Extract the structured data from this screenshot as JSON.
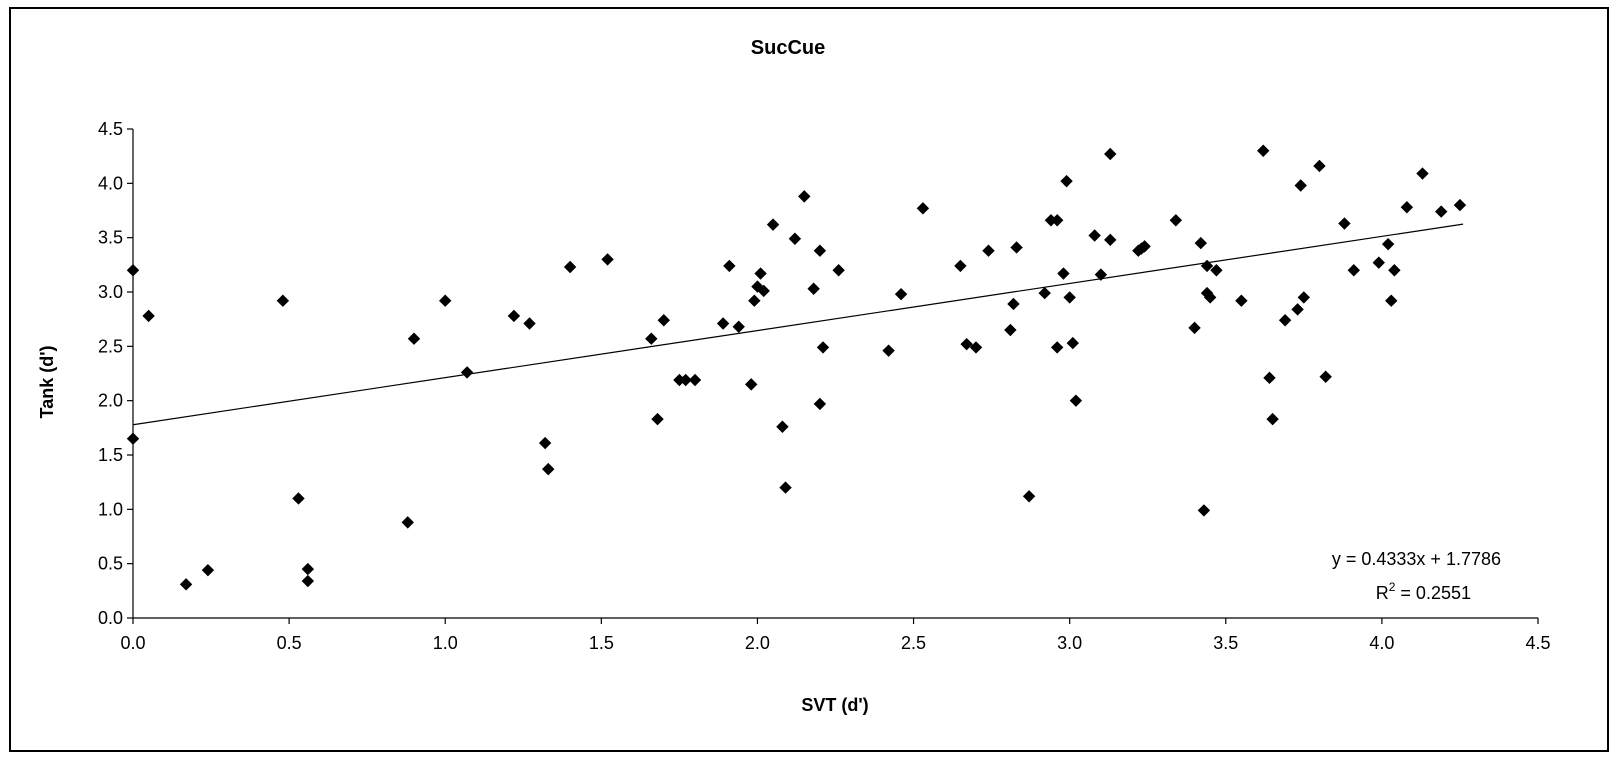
{
  "chart_data": {
    "type": "scatter",
    "title": "SucCue",
    "xlabel": "SVT (d')",
    "ylabel": "Tank (d')",
    "xlim": [
      0,
      4.5
    ],
    "ylim": [
      0,
      4.5
    ],
    "x_ticks": [
      "0.0",
      "0.5",
      "1.0",
      "1.5",
      "2.0",
      "2.5",
      "3.0",
      "3.5",
      "4.0",
      "4.5"
    ],
    "y_ticks": [
      "0.0",
      "0.5",
      "1.0",
      "1.5",
      "2.0",
      "2.5",
      "3.0",
      "3.5",
      "4.0",
      "4.5"
    ],
    "grid": false,
    "marker": "diamond",
    "marker_color": "#000000",
    "trendline": {
      "slope": 0.4333,
      "intercept": 1.7786,
      "x_range": [
        0.0,
        4.26
      ],
      "equation_label": "y = 0.4333x + 1.7786",
      "r2_prefix": "R",
      "r2_sup": "2",
      "r2_value": " = 0.2551"
    },
    "points": [
      [
        0.0,
        3.2
      ],
      [
        0.0,
        1.65
      ],
      [
        0.05,
        2.78
      ],
      [
        0.17,
        0.31
      ],
      [
        0.24,
        0.44
      ],
      [
        0.48,
        2.92
      ],
      [
        0.53,
        1.1
      ],
      [
        0.56,
        0.45
      ],
      [
        0.56,
        0.34
      ],
      [
        0.88,
        0.88
      ],
      [
        0.9,
        2.57
      ],
      [
        1.0,
        2.92
      ],
      [
        1.07,
        2.26
      ],
      [
        1.22,
        2.78
      ],
      [
        1.27,
        2.71
      ],
      [
        1.32,
        1.61
      ],
      [
        1.33,
        1.37
      ],
      [
        1.4,
        3.23
      ],
      [
        1.52,
        3.3
      ],
      [
        1.66,
        2.57
      ],
      [
        1.68,
        1.83
      ],
      [
        1.7,
        2.74
      ],
      [
        1.75,
        2.19
      ],
      [
        1.77,
        2.19
      ],
      [
        1.8,
        2.19
      ],
      [
        1.89,
        2.71
      ],
      [
        1.91,
        3.24
      ],
      [
        1.94,
        2.68
      ],
      [
        1.98,
        2.15
      ],
      [
        1.99,
        2.92
      ],
      [
        2.0,
        3.05
      ],
      [
        2.01,
        3.17
      ],
      [
        2.02,
        3.01
      ],
      [
        2.05,
        3.62
      ],
      [
        2.08,
        1.76
      ],
      [
        2.09,
        1.2
      ],
      [
        2.12,
        3.49
      ],
      [
        2.15,
        3.88
      ],
      [
        2.18,
        3.03
      ],
      [
        2.2,
        3.38
      ],
      [
        2.2,
        1.97
      ],
      [
        2.21,
        2.49
      ],
      [
        2.26,
        3.2
      ],
      [
        2.42,
        2.46
      ],
      [
        2.46,
        2.98
      ],
      [
        2.53,
        3.77
      ],
      [
        2.65,
        3.24
      ],
      [
        2.67,
        2.52
      ],
      [
        2.7,
        2.49
      ],
      [
        2.74,
        3.38
      ],
      [
        2.81,
        2.65
      ],
      [
        2.82,
        2.89
      ],
      [
        2.83,
        3.41
      ],
      [
        2.87,
        1.12
      ],
      [
        2.92,
        2.99
      ],
      [
        2.94,
        3.66
      ],
      [
        2.96,
        3.66
      ],
      [
        2.96,
        2.49
      ],
      [
        2.98,
        3.17
      ],
      [
        2.99,
        4.02
      ],
      [
        3.0,
        2.95
      ],
      [
        3.01,
        2.53
      ],
      [
        3.02,
        2.0
      ],
      [
        3.08,
        3.52
      ],
      [
        3.1,
        3.16
      ],
      [
        3.13,
        4.27
      ],
      [
        3.13,
        3.48
      ],
      [
        3.22,
        3.38
      ],
      [
        3.23,
        3.4
      ],
      [
        3.24,
        3.42
      ],
      [
        3.34,
        3.66
      ],
      [
        3.4,
        2.67
      ],
      [
        3.42,
        3.45
      ],
      [
        3.43,
        0.99
      ],
      [
        3.44,
        3.24
      ],
      [
        3.44,
        2.99
      ],
      [
        3.45,
        2.95
      ],
      [
        3.47,
        3.2
      ],
      [
        3.55,
        2.92
      ],
      [
        3.62,
        4.3
      ],
      [
        3.64,
        2.21
      ],
      [
        3.65,
        1.83
      ],
      [
        3.69,
        2.74
      ],
      [
        3.73,
        2.84
      ],
      [
        3.74,
        3.98
      ],
      [
        3.75,
        2.95
      ],
      [
        3.8,
        4.16
      ],
      [
        3.82,
        2.22
      ],
      [
        3.88,
        3.63
      ],
      [
        3.91,
        3.2
      ],
      [
        3.99,
        3.27
      ],
      [
        4.02,
        3.44
      ],
      [
        4.03,
        2.92
      ],
      [
        4.04,
        3.2
      ],
      [
        4.08,
        3.78
      ],
      [
        4.13,
        4.09
      ],
      [
        4.19,
        3.74
      ],
      [
        4.25,
        3.8
      ]
    ]
  }
}
